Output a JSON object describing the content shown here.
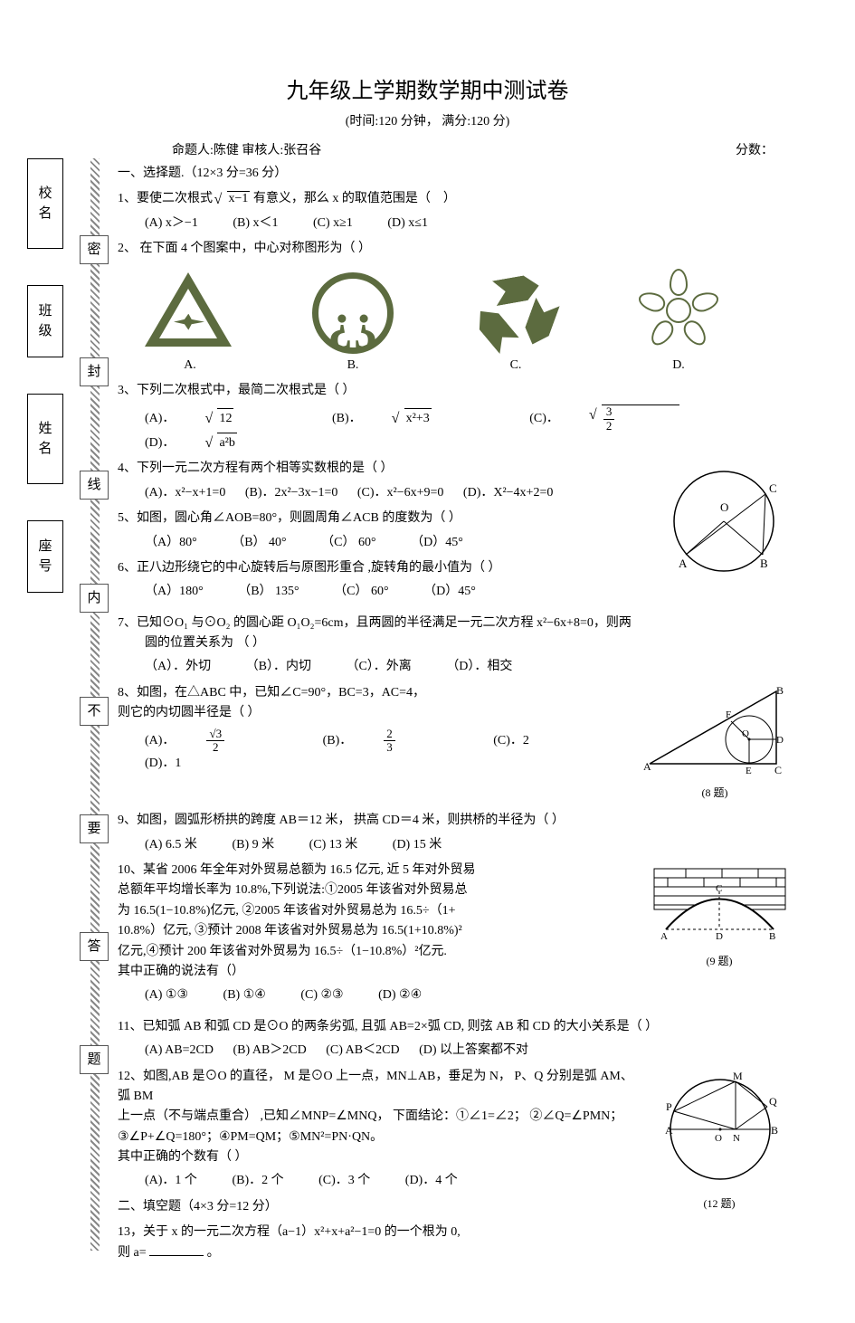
{
  "title": "九年级上学期数学期中测试卷",
  "subtitle": "(时间:120 分钟，   满分:120 分)",
  "author_line": "命题人:陈健      审核人:张召谷",
  "score_label": "分数：",
  "spine": {
    "boxes": [
      "校名",
      "班级",
      "姓名",
      "座号"
    ],
    "seal_chars": [
      "密",
      "封",
      "线",
      "内",
      "不",
      "要",
      "答",
      "题"
    ]
  },
  "section1": "一、选择题.（12×3 分=36 分）",
  "q1": {
    "text": "1、要使二次根式 √(x−1) 有意义，那么 x 的取值范围是（      ）",
    "A": "(A) x＞−1",
    "B": "(B)  x＜1",
    "C": "(C)  x≥1",
    "D": "(D) x≤1"
  },
  "q2": {
    "text": "2、  在下面 4 个图案中，中心对称图形为（    ）",
    "labels": {
      "A": "A.",
      "B": "B.",
      "C": "C.",
      "D": "D."
    }
  },
  "q3": {
    "text": "3、下列二次根式中，最简二次根式是（      ）",
    "A": "(A)．",
    "B": "(B)．",
    "C": "(C)．",
    "D": "(D)．"
  },
  "q4": {
    "text": "4、下列一元二次方程有两个相等实数根的是（ ）",
    "A": "(A)．x²−x+1=0",
    "B": "(B)．2x²−3x−1=0",
    "C": "(C)．x²−6x+9=0",
    "D": "(D)．X²−4x+2=0"
  },
  "q5": {
    "text": "5、如图，圆心角∠AOB=80°，则圆周角∠ACB 的度数为（  ）",
    "A": "（A）80°",
    "B": "（B） 40°",
    "C": "（C） 60°",
    "D": "（D）45°"
  },
  "q6": {
    "text": "6、正八边形绕它的中心旋转后与原图形重合 ,旋转角的最小值为（ ）",
    "A": "（A）180°",
    "B": "（B） 135°",
    "C": "（C） 60°",
    "D": "（D）45°"
  },
  "q7": {
    "text_a": "7、已知⊙O₁ 与⊙O₂ 的圆心距 O₁O₂=6cm，且两圆的半径满足一元二次方程  x²−6x+8=0，则两",
    "text_b": "圆的位置关系为  （ ）",
    "A": "（A）．外切",
    "B": "（B）．内切",
    "C": "（C）．外离",
    "D": "（D）．相交"
  },
  "q8": {
    "text_a": "8、如图，在△ABC 中，已知∠C=90°，BC=3，AC=4，",
    "text_b": "则它的内切圆半径是（    ）",
    "A": "(A)．",
    "B": "(B)．",
    "C": "(C)．2",
    "D": "(D)．1",
    "caption": "(8 题)"
  },
  "q9": {
    "text": "9、如图，圆弧形桥拱的跨度 AB＝12 米， 拱高 CD＝4 米，则拱桥的半径为（          ）",
    "A": "(A)  6.5 米",
    "B": "(B) 9 米",
    "C": "(C) 13 米",
    "D": "(D)   15 米",
    "caption": "(9 题)"
  },
  "q10": {
    "l1": "10、某省 2006 年全年对外贸易总额为 16.5 亿元, 近 5 年对外贸易",
    "l2": "总额年平均增长率为 10.8%,下列说法:①2005 年该省对外贸易总",
    "l3": "为 16.5(1−10.8%)亿元, ②2005 年该省对外贸易总为 16.5÷（1+",
    "l4": "10.8%）亿元, ③预计 2008 年该省对外贸易总为 16.5(1+10.8%)²",
    "l5": "亿元,④预计 200 年该省对外贸易为 16.5÷（1−10.8%）²亿元.",
    "l6": "其中正确的说法有（）",
    "A": "(A) ①③",
    "B": "(B) ①④",
    "C": "(C) ②③",
    "D": "(D)  ②④"
  },
  "q11": {
    "text": "11、已知弧 AB 和弧 CD 是⊙O 的两条劣弧, 且弧 AB=2×弧 CD, 则弦 AB 和 CD 的大小关系是（  ）",
    "A": "(A)  AB=2CD",
    "B": "(B) AB＞2CD",
    "C": "(C) AB＜2CD",
    "D": "(D)   以上答案都不对"
  },
  "q12": {
    "l1": "12、如图,AB 是⊙O 的直径， M 是⊙O 上一点，MN⊥AB，垂足为 N， P、Q 分别是弧 AM、弧 BM",
    "l2": "上一点（不与端点重合）   ,已知∠MNP=∠MNQ，     下面结论：①∠1=∠2；     ②∠Q=∠PMN；",
    "l3": "③∠P+∠Q=180°；④PM=QM；⑤MN²=PN·QN。",
    "l4": "其中正确的个数有（    ）",
    "A": "(A)．1 个",
    "B": "(B)．2 个",
    "C": "(C)．3 个",
    "D": "(D)．4 个",
    "caption": "(12 题)"
  },
  "section2": "二、填空题（4×3 分=12 分）",
  "q13": {
    "l1": "13，关于 x 的一元二次方程（a−1）x²+x+a²−1=0 的一个根为 0,",
    "l2": "则 a=",
    "l3": "。"
  },
  "colors": {
    "icon": "#5c6b3f",
    "text": "#000000",
    "bg": "#ffffff"
  }
}
